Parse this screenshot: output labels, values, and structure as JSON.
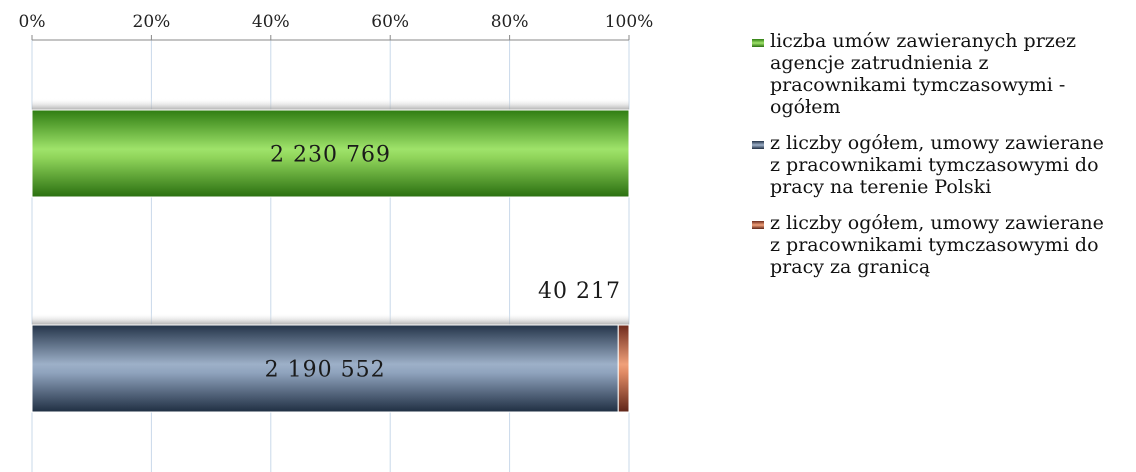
{
  "chart_data": {
    "type": "bar",
    "orientation": "horizontal",
    "stacked": "percent",
    "x_ticks": [
      "0%",
      "20%",
      "40%",
      "60%",
      "80%",
      "100%"
    ],
    "xlim": [
      0,
      100
    ],
    "grid": true,
    "legend_position": "right",
    "series": [
      {
        "name": "liczba umów zawieranych przez agencje zatrudnienia z pracownikami tymczasowymi - ogółem",
        "color": "#5aa02c",
        "bar": 1,
        "value": 2230769,
        "label": "2 230 769"
      },
      {
        "name": "z liczby ogółem, umowy zawierane z pracownikami tymczasowymi do pracy na terenie Polski",
        "color": "#44546a",
        "bar": 2,
        "value": 2190552,
        "label": "2 190 552"
      },
      {
        "name": "z liczby ogółem, umowy zawierane z pracownikami tymczasowymi do pracy za granicą",
        "color": "#c0504d",
        "bar": 2,
        "value": 40217,
        "label": "40 217"
      }
    ]
  }
}
